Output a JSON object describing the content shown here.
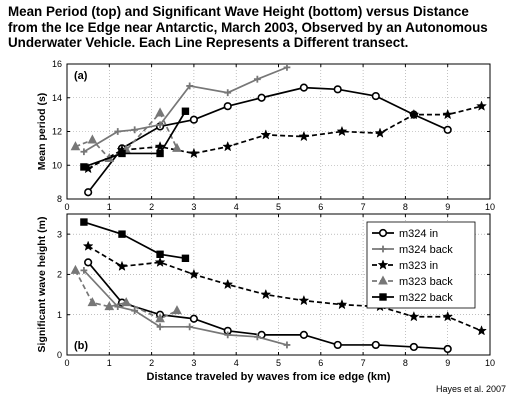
{
  "figure": {
    "title_lines": [
      "Mean Period (top) and Significant Wave Height (bottom) versus Distance",
      "from the Ice Edge near Antarctic, March 2003, Observed by an Autonomous",
      "Underwater Vehicle. Each Line Represents a Different transect."
    ],
    "credit": "Hayes et al. 2007"
  },
  "chart_data": [
    {
      "type": "line",
      "panel_label": "(a)",
      "ylabel": "Mean period (s)",
      "xlabel": "",
      "xlim": [
        0,
        10
      ],
      "ylim": [
        8,
        16
      ],
      "xticks": [
        0,
        1,
        2,
        3,
        4,
        5,
        6,
        7,
        8,
        9,
        10
      ],
      "yticks": [
        8,
        10,
        12,
        14,
        16
      ],
      "grid": true,
      "series": [
        {
          "name": "m324 in",
          "color": "#000000",
          "dash": "solid",
          "marker": "circle",
          "x": [
            0.5,
            1.3,
            2.2,
            3.0,
            3.8,
            4.6,
            5.6,
            6.4,
            7.3,
            8.2,
            9.0
          ],
          "y": [
            8.4,
            11.0,
            12.3,
            12.7,
            13.5,
            14.0,
            14.6,
            14.5,
            14.1,
            13.0,
            12.1
          ]
        },
        {
          "name": "m324 back",
          "color": "#777777",
          "dash": "solid",
          "marker": "plus",
          "x": [
            0.4,
            1.2,
            1.6,
            2.2,
            2.9,
            3.8,
            4.5,
            5.2
          ],
          "y": [
            10.8,
            12.0,
            12.1,
            12.4,
            14.7,
            14.3,
            15.1,
            15.8
          ]
        },
        {
          "name": "m323 in",
          "color": "#000000",
          "dash": "dashed",
          "marker": "star",
          "x": [
            0.5,
            1.3,
            2.2,
            3.0,
            3.8,
            4.7,
            5.6,
            6.5,
            7.4,
            8.2,
            9.0,
            9.8
          ],
          "y": [
            9.8,
            10.9,
            11.1,
            10.7,
            11.1,
            11.8,
            11.7,
            12.0,
            11.9,
            13.0,
            13.0,
            13.5
          ]
        },
        {
          "name": "m323 back",
          "color": "#777777",
          "dash": "dashed",
          "marker": "triangle",
          "x": [
            0.2,
            0.6,
            1.0,
            1.4,
            2.2,
            2.6
          ],
          "y": [
            11.1,
            11.5,
            10.4,
            10.9,
            13.1,
            11.0
          ]
        },
        {
          "name": "m322 back",
          "color": "#000000",
          "dash": "solid",
          "marker": "square",
          "x": [
            0.4,
            1.3,
            2.2,
            2.8
          ],
          "y": [
            9.9,
            10.7,
            10.7,
            13.2
          ]
        }
      ]
    },
    {
      "type": "line",
      "panel_label": "(b)",
      "ylabel": "Significant wave height (m)",
      "xlabel": "Distance traveled by waves from ice edge (km)",
      "xlim": [
        0,
        10
      ],
      "ylim": [
        0,
        3.5
      ],
      "xticks": [
        0,
        1,
        2,
        3,
        4,
        5,
        6,
        7,
        8,
        9,
        10
      ],
      "yticks": [
        0,
        1,
        2,
        3
      ],
      "grid": true,
      "legend": "top-right",
      "series": [
        {
          "name": "m324 in",
          "color": "#000000",
          "dash": "solid",
          "marker": "circle",
          "x": [
            0.5,
            1.3,
            2.2,
            3.0,
            3.8,
            4.6,
            5.6,
            6.4,
            7.3,
            8.2,
            9.0
          ],
          "y": [
            2.3,
            1.3,
            1.0,
            0.9,
            0.6,
            0.5,
            0.5,
            0.25,
            0.25,
            0.2,
            0.15
          ]
        },
        {
          "name": "m324 back",
          "color": "#777777",
          "dash": "solid",
          "marker": "plus",
          "x": [
            0.4,
            1.2,
            1.6,
            2.2,
            2.9,
            3.8,
            4.5,
            5.2
          ],
          "y": [
            2.1,
            1.2,
            1.1,
            0.7,
            0.7,
            0.5,
            0.45,
            0.25
          ]
        },
        {
          "name": "m323 in",
          "color": "#000000",
          "dash": "dashed",
          "marker": "star",
          "x": [
            0.5,
            1.3,
            2.2,
            3.0,
            3.8,
            4.7,
            5.6,
            6.5,
            7.4,
            8.2,
            9.0,
            9.8
          ],
          "y": [
            2.7,
            2.2,
            2.3,
            2.0,
            1.75,
            1.5,
            1.35,
            1.25,
            1.2,
            0.95,
            0.95,
            0.6
          ]
        },
        {
          "name": "m323 back",
          "color": "#777777",
          "dash": "dashed",
          "marker": "triangle",
          "x": [
            0.2,
            0.6,
            1.0,
            1.4,
            2.2,
            2.6
          ],
          "y": [
            2.1,
            1.3,
            1.2,
            1.3,
            0.9,
            1.1
          ]
        },
        {
          "name": "m322 back",
          "color": "#000000",
          "dash": "solid",
          "marker": "square",
          "x": [
            0.4,
            1.3,
            2.2,
            2.8
          ],
          "y": [
            3.3,
            3.0,
            2.5,
            2.4
          ]
        }
      ]
    }
  ]
}
